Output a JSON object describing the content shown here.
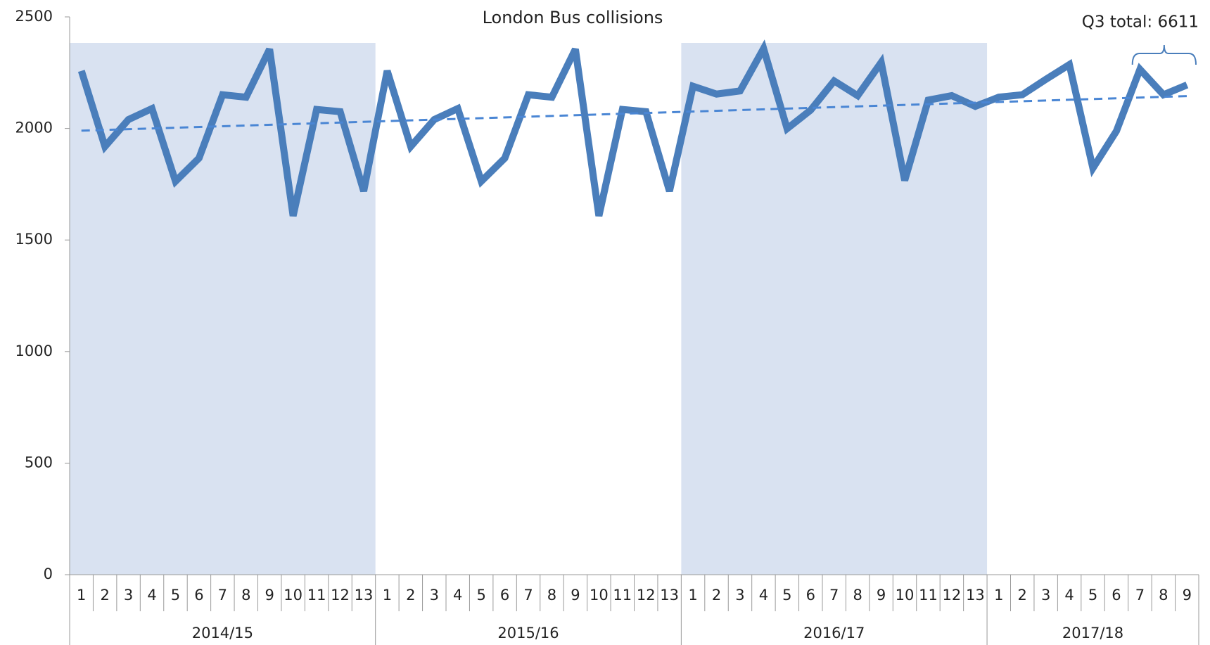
{
  "chart_data": {
    "type": "line",
    "title": "London Bus collisions",
    "groups": [
      {
        "label": "2014/15",
        "shaded": true,
        "categories": [
          "1",
          "2",
          "3",
          "4",
          "5",
          "6",
          "7",
          "8",
          "9",
          "10",
          "11",
          "12",
          "13"
        ]
      },
      {
        "label": "2015/16",
        "shaded": false,
        "categories": [
          "1",
          "2",
          "3",
          "4",
          "5",
          "6",
          "7",
          "8",
          "9",
          "10",
          "11",
          "12",
          "13"
        ]
      },
      {
        "label": "2016/17",
        "shaded": true,
        "categories": [
          "1",
          "2",
          "3",
          "4",
          "5",
          "6",
          "7",
          "8",
          "9",
          "10",
          "11",
          "12",
          "13"
        ]
      },
      {
        "label": "2017/18",
        "shaded": false,
        "categories": [
          "1",
          "2",
          "3",
          "4",
          "5",
          "6",
          "7",
          "8",
          "9"
        ]
      }
    ],
    "series": [
      {
        "color": "#4a7ebb",
        "values": [
          2258,
          1919,
          2040,
          2089,
          1763,
          1867,
          2151,
          2140,
          2355,
          1608,
          2085,
          2075,
          1719,
          2258,
          1919,
          2040,
          2089,
          1763,
          1867,
          2151,
          2140,
          2355,
          1608,
          2085,
          2075,
          1719,
          2189,
          2154,
          2168,
          2358,
          1999,
          2082,
          2213,
          2147,
          2296,
          1767,
          2127,
          2147,
          2099,
          2140,
          2151,
          2220,
          2286,
          1822,
          1988,
          2265,
          2151,
          2195
        ]
      }
    ],
    "trend": {
      "color": "#4a86d4",
      "values": [
        1990,
        2145
      ]
    },
    "annotation": "Q3 total: 6611",
    "shade_color": "#d9e2f1",
    "ylim": [
      0,
      2500
    ],
    "yticks": [
      0,
      500,
      1000,
      1500,
      2000,
      2500
    ]
  }
}
